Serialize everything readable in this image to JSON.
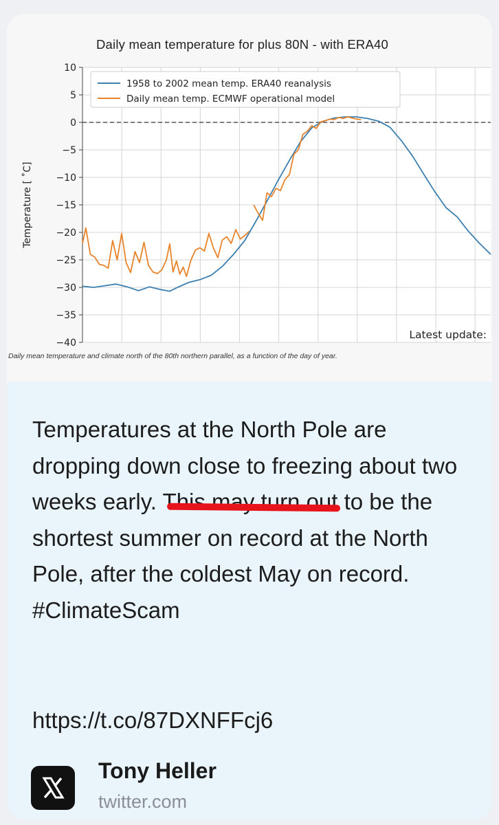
{
  "post": {
    "body_text": "Temperatures at the North Pole are dropping down close to freezing about two weeks early. This may turn out to be the shortest summer on record at the North Pole, after the coldest May on record.  #ClimateScam",
    "link": "https://t.co/87DXNFFcj6",
    "author": "Tony Heller",
    "domain": "twitter.com",
    "source_icon": "x-logo-icon",
    "highlight_color": "#e8141c"
  },
  "chart_data": {
    "type": "line",
    "title": "Daily mean temperature for plus 80N - with ERA40",
    "ylabel": "Temperature [ ˚C]",
    "xlabel": "",
    "ylim": [
      -40,
      10
    ],
    "xlim": [
      0,
      365
    ],
    "yticks": [
      10,
      5,
      0,
      -5,
      -10,
      -15,
      -20,
      -25,
      -30,
      -35,
      -40
    ],
    "grid": true,
    "legend_position": "top-left",
    "annotation": "Latest update:",
    "caption": "Daily mean temperature and climate north of the 80th northern parallel, as a function of the day of year.",
    "reference_line": 0,
    "series": [
      {
        "name": "1958 to 2002 mean temp. ERA40 reanalysis",
        "color": "#3b7fb0",
        "points": [
          [
            0,
            -29.8
          ],
          [
            10,
            -30
          ],
          [
            20,
            -29.7
          ],
          [
            30,
            -29.4
          ],
          [
            40,
            -29.9
          ],
          [
            50,
            -30.6
          ],
          [
            60,
            -29.9
          ],
          [
            70,
            -30.4
          ],
          [
            78,
            -30.7
          ],
          [
            85,
            -30
          ],
          [
            95,
            -29.1
          ],
          [
            105,
            -28.6
          ],
          [
            115,
            -27.8
          ],
          [
            125,
            -26.2
          ],
          [
            135,
            -24
          ],
          [
            145,
            -21.5
          ],
          [
            155,
            -18
          ],
          [
            165,
            -14.3
          ],
          [
            175,
            -10.5
          ],
          [
            185,
            -6.9
          ],
          [
            195,
            -3.5
          ],
          [
            205,
            -1
          ],
          [
            215,
            0.2
          ],
          [
            225,
            0.8
          ],
          [
            235,
            1
          ],
          [
            245,
            1
          ],
          [
            255,
            0.7
          ],
          [
            265,
            0.2
          ],
          [
            275,
            -0.9
          ],
          [
            285,
            -3.3
          ],
          [
            295,
            -6.1
          ],
          [
            305,
            -9.4
          ],
          [
            315,
            -12.6
          ],
          [
            325,
            -15.5
          ],
          [
            335,
            -17.2
          ],
          [
            345,
            -19.8
          ],
          [
            355,
            -22
          ],
          [
            365,
            -24
          ]
        ]
      },
      {
        "name": "Daily mean temp. ECMWF operational model",
        "color": "#e8832a",
        "points": [
          [
            0,
            -22
          ],
          [
            3,
            -19.2
          ],
          [
            7,
            -24
          ],
          [
            11,
            -24.5
          ],
          [
            15,
            -25.8
          ],
          [
            19,
            -26
          ],
          [
            23,
            -26.5
          ],
          [
            27,
            -21.5
          ],
          [
            31,
            -25
          ],
          [
            35,
            -20.2
          ],
          [
            39,
            -25.5
          ],
          [
            43,
            -27.3
          ],
          [
            47,
            -23.5
          ],
          [
            51,
            -25.5
          ],
          [
            55,
            -21.8
          ],
          [
            59,
            -26
          ],
          [
            63,
            -27.2
          ],
          [
            67,
            -27.5
          ],
          [
            71,
            -26.8
          ],
          [
            75,
            -25
          ],
          [
            78,
            -22.1
          ],
          [
            81,
            -27.2
          ],
          [
            84,
            -25.2
          ],
          [
            87,
            -27.6
          ],
          [
            90,
            -26.3
          ],
          [
            93,
            -28
          ],
          [
            97,
            -25
          ],
          [
            101,
            -23.2
          ],
          [
            105,
            -22.8
          ],
          [
            109,
            -23.4
          ],
          [
            113,
            -20.2
          ],
          [
            117,
            -22.8
          ],
          [
            121,
            -24.6
          ],
          [
            125,
            -21.4
          ],
          [
            129,
            -20.8
          ],
          [
            133,
            -22
          ],
          [
            137,
            -19.5
          ],
          [
            141,
            -21.2
          ],
          [
            145,
            -20.6
          ],
          [
            149,
            -19.8
          ],
          [
            null,
            null
          ],
          [
            153,
            -15
          ],
          [
            157,
            -16.5
          ],
          [
            161,
            -17.8
          ],
          [
            165,
            -12.8
          ],
          [
            169,
            -13.5
          ],
          [
            173,
            -12
          ],
          [
            177,
            -12.4
          ],
          [
            181,
            -10.4
          ],
          [
            185,
            -9.5
          ],
          [
            189,
            -5.8
          ],
          [
            193,
            -5
          ],
          [
            197,
            -2.2
          ],
          [
            201,
            -1.6
          ],
          [
            205,
            -0.6
          ],
          [
            209,
            -1.1
          ],
          [
            213,
            0.1
          ],
          [
            217,
            0.3
          ],
          [
            221,
            0.6
          ],
          [
            225,
            0.5
          ],
          [
            229,
            0.9
          ],
          [
            233,
            0.7
          ],
          [
            237,
            1
          ],
          [
            241,
            0.8
          ],
          [
            245,
            0.6
          ],
          [
            249,
            0.5
          ]
        ]
      }
    ]
  }
}
